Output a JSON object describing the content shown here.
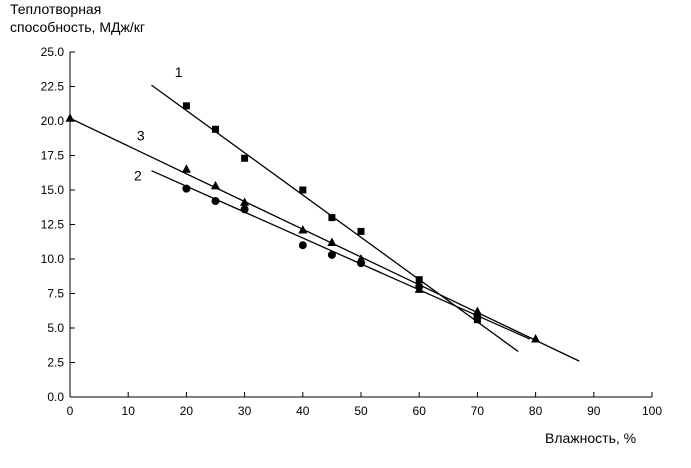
{
  "chart_data": {
    "type": "scatter",
    "ylabel_lines": [
      "Теплотворная",
      "способность, МДж/кг"
    ],
    "xlabel": "Влажность, %",
    "xlim": [
      0,
      100
    ],
    "ylim": [
      0,
      25
    ],
    "x_ticks": [
      "0",
      "10",
      "20",
      "30",
      "40",
      "50",
      "60",
      "70",
      "80",
      "90",
      "100"
    ],
    "y_ticks": [
      "0.0",
      "2.5",
      "5.0",
      "7.5",
      "10.0",
      "12.5",
      "15.0",
      "17.5",
      "20.0",
      "22.5",
      "25.0"
    ],
    "grid": false,
    "series": [
      {
        "label": "1",
        "marker": "square",
        "points": [
          [
            20,
            21.1
          ],
          [
            25,
            19.4
          ],
          [
            30,
            17.3
          ],
          [
            40,
            15.0
          ],
          [
            45,
            13.0
          ],
          [
            50,
            12.0
          ],
          [
            60,
            8.5
          ],
          [
            70,
            5.6
          ]
        ],
        "fit_line": [
          [
            14,
            22.6
          ],
          [
            77,
            3.3
          ]
        ],
        "label_pos": [
          18,
          23.2
        ]
      },
      {
        "label": "2",
        "marker": "circle",
        "points": [
          [
            20,
            15.1
          ],
          [
            25,
            14.2
          ],
          [
            30,
            13.6
          ],
          [
            40,
            11.0
          ],
          [
            45,
            10.3
          ],
          [
            50,
            9.7
          ],
          [
            60,
            8.0
          ],
          [
            70,
            5.8
          ]
        ],
        "fit_line": [
          [
            14,
            16.4
          ],
          [
            79,
            4.2
          ]
        ],
        "label_pos": [
          11,
          15.7
        ]
      },
      {
        "label": "3",
        "marker": "triangle",
        "points": [
          [
            0,
            20.2
          ],
          [
            20,
            16.5
          ],
          [
            25,
            15.3
          ],
          [
            30,
            14.1
          ],
          [
            40,
            12.1
          ],
          [
            45,
            11.2
          ],
          [
            50,
            10.0
          ],
          [
            60,
            7.8
          ],
          [
            70,
            6.2
          ],
          [
            80,
            4.2
          ]
        ],
        "fit_line": [
          [
            0,
            20.2
          ],
          [
            87.5,
            2.6
          ]
        ],
        "label_pos": [
          11.5,
          18.6
        ]
      }
    ]
  }
}
